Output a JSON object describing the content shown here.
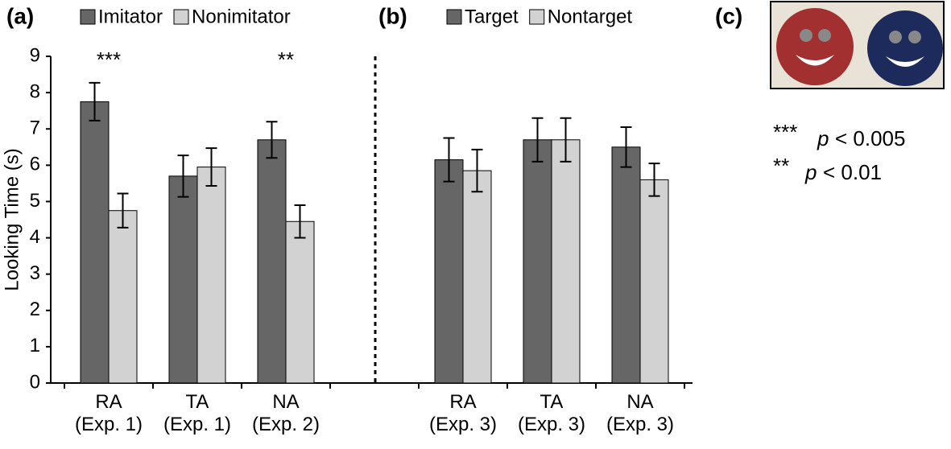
{
  "chart_data": [
    {
      "type": "bar",
      "title": "(a)",
      "ylabel": "Looking Time (s)",
      "categories": [
        "RA\n(Exp. 1)",
        "TA\n(Exp. 1)",
        "NA\n(Exp. 2)"
      ],
      "series": [
        {
          "name": "Imitator",
          "color": "#666666",
          "values": [
            7.75,
            5.7,
            6.7
          ],
          "errors": [
            0.52,
            0.57,
            0.5
          ]
        },
        {
          "name": "Nonimitator",
          "color": "#d2d2d2",
          "values": [
            4.75,
            5.95,
            4.45
          ],
          "errors": [
            0.47,
            0.52,
            0.45
          ]
        }
      ],
      "significance": [
        "***",
        null,
        "**"
      ],
      "ylim": [
        0,
        9
      ],
      "yticks": [
        0,
        1,
        2,
        3,
        4,
        5,
        6,
        7,
        8,
        9
      ],
      "legend": "top"
    },
    {
      "type": "bar",
      "title": "(b)",
      "categories": [
        "RA\n(Exp. 3)",
        "TA\n(Exp. 3)",
        "NA\n(Exp. 3)"
      ],
      "series": [
        {
          "name": "Target",
          "color": "#666666",
          "values": [
            6.15,
            6.7,
            6.5
          ],
          "errors": [
            0.6,
            0.6,
            0.55
          ]
        },
        {
          "name": "Nontarget",
          "color": "#d2d2d2",
          "values": [
            5.85,
            6.7,
            5.6
          ],
          "errors": [
            0.58,
            0.6,
            0.45
          ]
        }
      ],
      "ylim": [
        0,
        9
      ],
      "legend": "top"
    }
  ],
  "panel_c": {
    "title": "(c)",
    "notes": [
      {
        "stars": "***",
        "p": "p",
        "threshold": "< 0.005"
      },
      {
        "stars": "**",
        "p": "p",
        "threshold": "< 0.01"
      }
    ]
  }
}
